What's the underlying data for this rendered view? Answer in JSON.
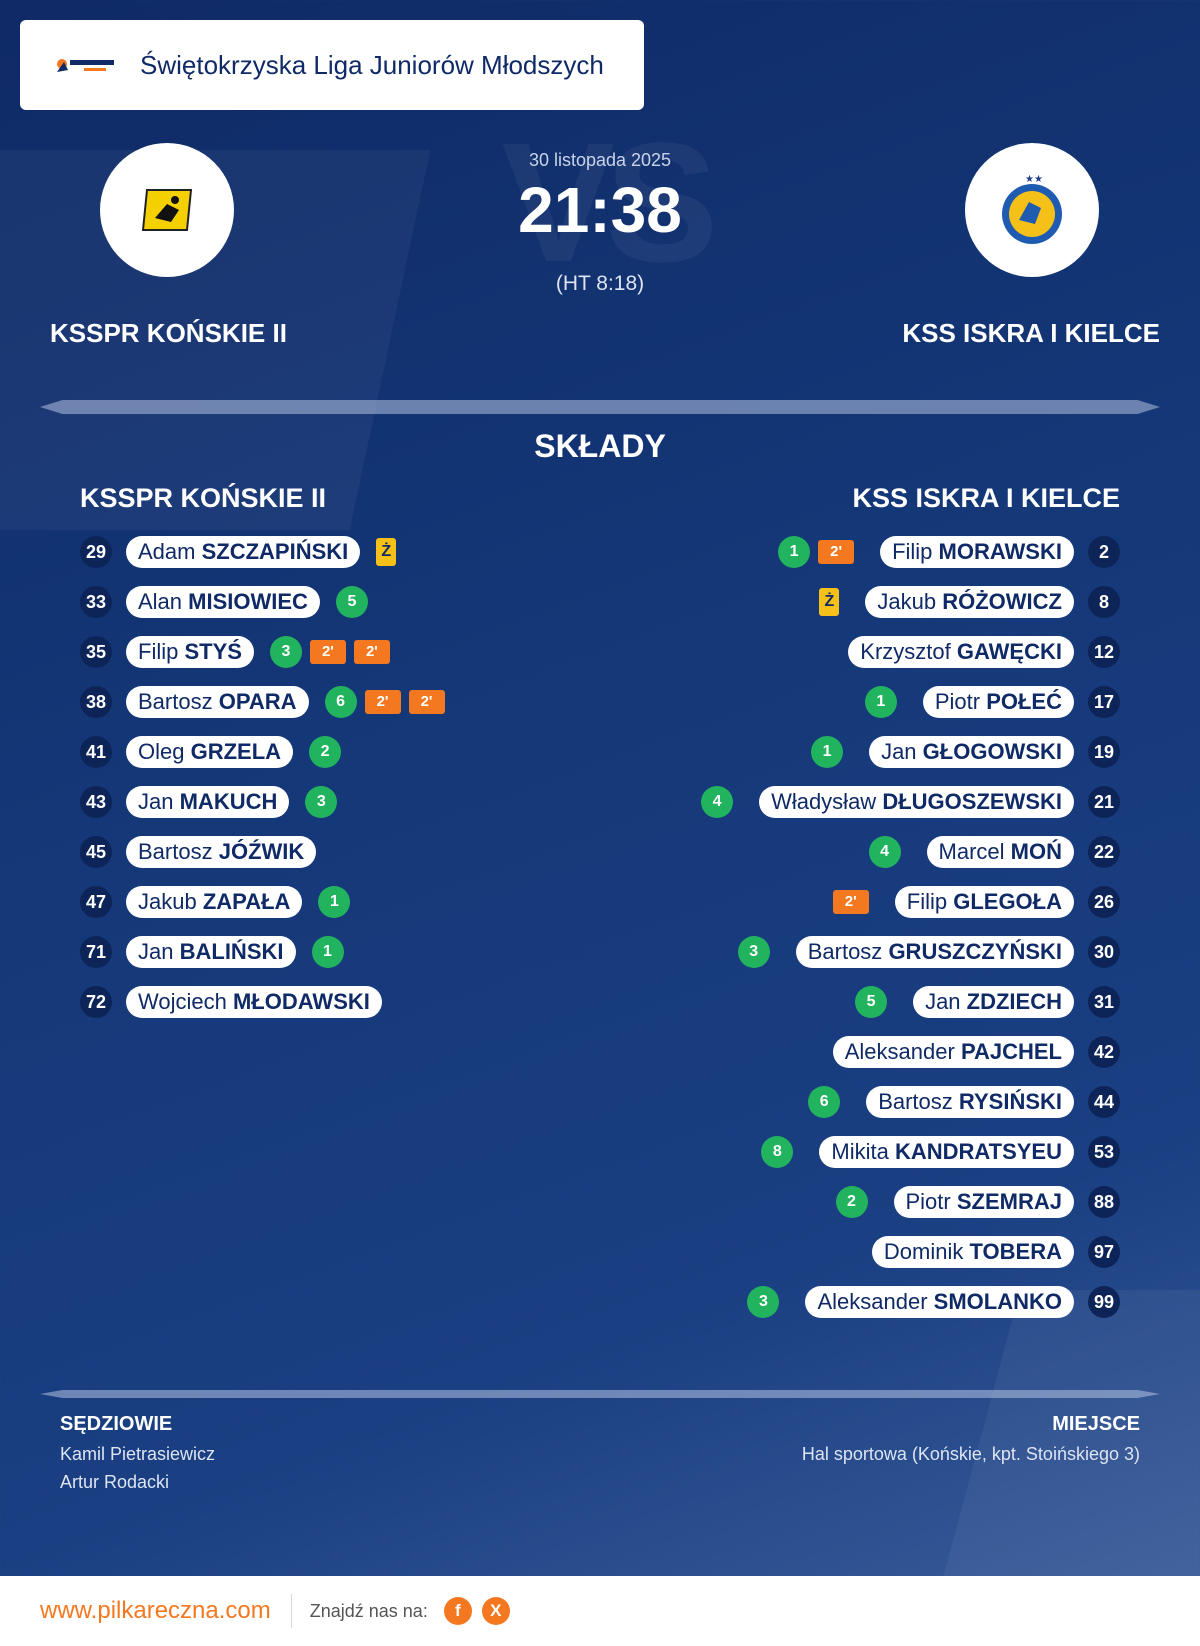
{
  "header": {
    "logo_name": "pilkareczna.com logo",
    "league": "Świętokrzyska Liga Juniorów Młodszych"
  },
  "match": {
    "date": "30 listopada 2025",
    "score": "21:38",
    "halftime": "(HT 8:18)",
    "vs_text": "VS",
    "home_team": "KSSPR KOŃSKIE II",
    "away_team": "KSS ISKRA I KIELCE"
  },
  "lineups": {
    "section_title": "SKŁADY",
    "home_title": "KSSPR KOŃSKIE II",
    "away_title": "KSS ISKRA I KIELCE",
    "home": [
      {
        "number": "29",
        "first": "Adam",
        "last": "SZCZAPIŃSKI",
        "goals": "",
        "susp": [],
        "yellow": "Ż"
      },
      {
        "number": "33",
        "first": "Alan",
        "last": "MISIOWIEC",
        "goals": "5",
        "susp": [],
        "yellow": ""
      },
      {
        "number": "35",
        "first": "Filip",
        "last": "STYŚ",
        "goals": "3",
        "susp": [
          "2'",
          "2'"
        ],
        "yellow": ""
      },
      {
        "number": "38",
        "first": "Bartosz",
        "last": "OPARA",
        "goals": "6",
        "susp": [
          "2'",
          "2'"
        ],
        "yellow": ""
      },
      {
        "number": "41",
        "first": "Oleg",
        "last": "GRZELA",
        "goals": "2",
        "susp": [],
        "yellow": ""
      },
      {
        "number": "43",
        "first": "Jan",
        "last": "MAKUCH",
        "goals": "3",
        "susp": [],
        "yellow": ""
      },
      {
        "number": "45",
        "first": "Bartosz",
        "last": "JÓŹWIK",
        "goals": "",
        "susp": [],
        "yellow": ""
      },
      {
        "number": "47",
        "first": "Jakub",
        "last": "ZAPAŁA",
        "goals": "1",
        "susp": [],
        "yellow": ""
      },
      {
        "number": "71",
        "first": "Jan",
        "last": "BALIŃSKI",
        "goals": "1",
        "susp": [],
        "yellow": ""
      },
      {
        "number": "72",
        "first": "Wojciech",
        "last": "MŁODAWSKI",
        "goals": "",
        "susp": [],
        "yellow": ""
      }
    ],
    "away": [
      {
        "number": "2",
        "first": "Filip",
        "last": "MORAWSKI",
        "goals": "1",
        "susp": [
          "2'"
        ],
        "yellow": ""
      },
      {
        "number": "8",
        "first": "Jakub",
        "last": "RÓŻOWICZ",
        "goals": "",
        "susp": [],
        "yellow": "Ż"
      },
      {
        "number": "12",
        "first": "Krzysztof",
        "last": "GAWĘCKI",
        "goals": "",
        "susp": [],
        "yellow": ""
      },
      {
        "number": "17",
        "first": "Piotr",
        "last": "POŁEĆ",
        "goals": "1",
        "susp": [],
        "yellow": ""
      },
      {
        "number": "19",
        "first": "Jan",
        "last": "GŁOGOWSKI",
        "goals": "1",
        "susp": [],
        "yellow": ""
      },
      {
        "number": "21",
        "first": "Władysław",
        "last": "DŁUGOSZEWSKI",
        "goals": "4",
        "susp": [],
        "yellow": ""
      },
      {
        "number": "22",
        "first": "Marcel",
        "last": "MOŃ",
        "goals": "4",
        "susp": [],
        "yellow": ""
      },
      {
        "number": "26",
        "first": "Filip",
        "last": "GLEGOŁA",
        "goals": "",
        "susp": [
          "2'"
        ],
        "yellow": ""
      },
      {
        "number": "30",
        "first": "Bartosz",
        "last": "GRUSZCZYŃSKI",
        "goals": "3",
        "susp": [],
        "yellow": ""
      },
      {
        "number": "31",
        "first": "Jan",
        "last": "ZDZIECH",
        "goals": "5",
        "susp": [],
        "yellow": ""
      },
      {
        "number": "42",
        "first": "Aleksander",
        "last": "PAJCHEL",
        "goals": "",
        "susp": [],
        "yellow": ""
      },
      {
        "number": "44",
        "first": "Bartosz",
        "last": "RYSIŃSKI",
        "goals": "6",
        "susp": [],
        "yellow": ""
      },
      {
        "number": "53",
        "first": "Mikita",
        "last": "KANDRATSYEU",
        "goals": "8",
        "susp": [],
        "yellow": ""
      },
      {
        "number": "88",
        "first": "Piotr",
        "last": "SZEMRAJ",
        "goals": "2",
        "susp": [],
        "yellow": ""
      },
      {
        "number": "97",
        "first": "Dominik",
        "last": "TOBERA",
        "goals": "",
        "susp": [],
        "yellow": ""
      },
      {
        "number": "99",
        "first": "Aleksander",
        "last": "SMOLANKO",
        "goals": "3",
        "susp": [],
        "yellow": ""
      }
    ]
  },
  "referees": {
    "title": "SĘDZIOWIE",
    "names": [
      "Kamil Pietrasiewicz",
      "Artur Rodacki"
    ]
  },
  "venue": {
    "title": "MIEJSCE",
    "text": "Hal sportowa (Końskie, kpt. Stoińskiego 3)"
  },
  "footer": {
    "link": "www.pilkareczna.com",
    "find_us": "Znajdź nas na:",
    "facebook": "f",
    "x": "X"
  },
  "colors": {
    "navy": "#0f2a66",
    "goal": "#22b35e",
    "suspension": "#f47820",
    "yellow_card": "#f5c018",
    "accent": "#f47820"
  }
}
